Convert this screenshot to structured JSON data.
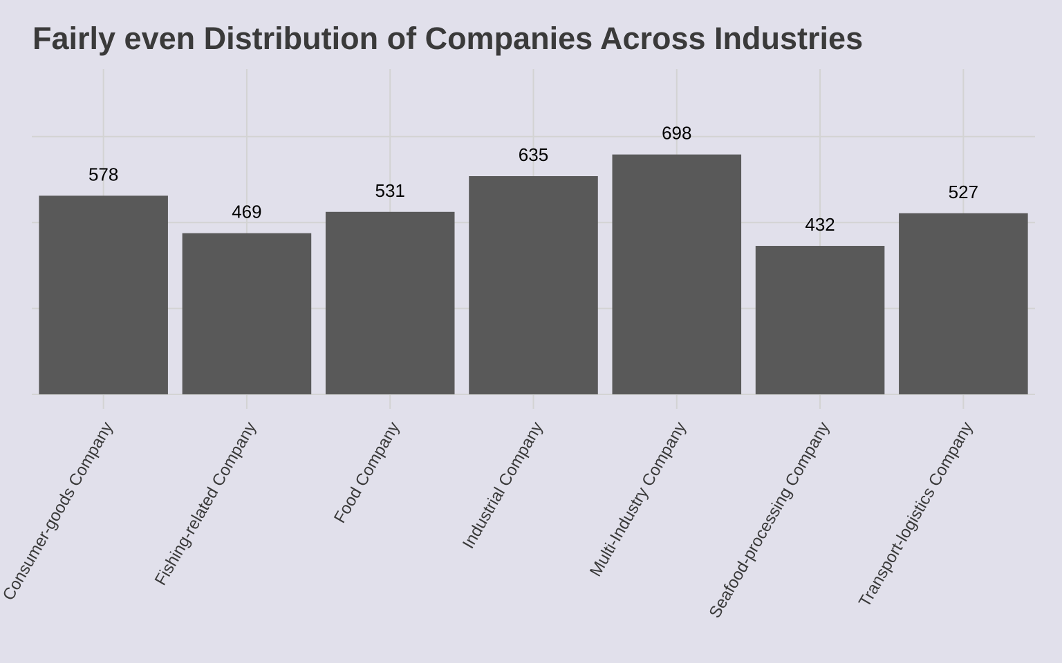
{
  "chart_data": {
    "type": "bar",
    "title": "Fairly even Distribution of Companies Across Industries",
    "xlabel": "",
    "ylabel": "",
    "categories": [
      "Consumer-goods Company",
      "Fishing-related Company",
      "Food Company",
      "Industrial Company",
      "Multi-Industry Company",
      "Seafood-processing Company",
      "Transport-logistics Company"
    ],
    "values": [
      578,
      469,
      531,
      635,
      698,
      432,
      527
    ],
    "ylim": [
      0,
      950
    ],
    "y_gridlines": [
      0,
      250,
      500,
      750
    ],
    "y_tick_labels_shown": false,
    "grid": true,
    "legend": "none",
    "colors": {
      "background": "#e1e0eb",
      "bar": "#595959",
      "grid": "#d3d3d3",
      "title": "#3a3a3a",
      "data_label": "#000000",
      "tick_label": "#3a3a3a"
    }
  }
}
